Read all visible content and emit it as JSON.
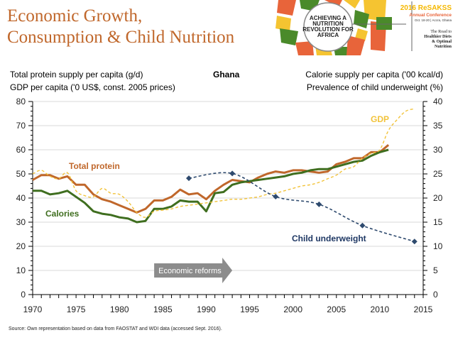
{
  "header": {
    "title_line1": "Economic Growth,",
    "title_line2": "Consumption & Child Nutrition"
  },
  "banner": {
    "logo_text": [
      "ACHIEVING A",
      "NUTRITION",
      "REVOLUTION FOR",
      "AFRICA"
    ],
    "conference_year": "2016 ReSAKSS",
    "conference_name": "Annual Conference",
    "conference_date": "Oct. 18-20 | Accra, Ghana",
    "tagline": [
      "The Road to",
      "Healthier Diets",
      "& Optimal",
      "Nutrition"
    ],
    "colors": {
      "orange": "#e8643a",
      "green": "#4a8a2a",
      "yellow": "#f5c431",
      "gray": "#d8d8d8"
    }
  },
  "axis_headers": {
    "left_line1": "Total protein supply per capita (g/d)",
    "left_line2": "GDP per capita ('0 US$, const. 2005 prices)",
    "country": "Ghana",
    "right_line1": "Calorie supply per capita ('00 kcal/d)",
    "right_line2": "Prevalence of child underweight (%)"
  },
  "annotation": {
    "label": "Economic reforms",
    "start_year": 1984,
    "end_year": 1993,
    "value": 10
  },
  "source": "Source: Own representation based on data from FAOSTAT and WDI data (accessed Sept. 2016).",
  "chart_data": {
    "type": "line",
    "title": "Ghana",
    "xlabel": "",
    "ylabel": "Total protein supply per capita (g/d); GDP per capita ('0 US$, const. 2005 prices)",
    "y2label": "Calorie supply per capita ('00 kcal/d); Prevalence of child underweight (%)",
    "xlim": [
      1970,
      2015
    ],
    "ylim": [
      0,
      80
    ],
    "y2lim": [
      0,
      40
    ],
    "xticks": [
      1970,
      1975,
      1980,
      1985,
      1990,
      1995,
      2000,
      2005,
      2010,
      2015
    ],
    "yticks": [
      0,
      10,
      20,
      30,
      40,
      50,
      60,
      70,
      80
    ],
    "y2ticks": [
      0,
      5,
      10,
      15,
      20,
      25,
      30,
      35,
      40
    ],
    "grid": true,
    "legend": "inline labels",
    "series": [
      {
        "name": "Total protein",
        "axis": "left",
        "color": "#c0672b",
        "style": "solid",
        "x": [
          1970,
          1971,
          1972,
          1973,
          1974,
          1975,
          1976,
          1977,
          1978,
          1979,
          1980,
          1981,
          1982,
          1983,
          1984,
          1985,
          1986,
          1987,
          1988,
          1989,
          1990,
          1991,
          1992,
          1993,
          1994,
          1995,
          1996,
          1997,
          1998,
          1999,
          2000,
          2001,
          2002,
          2003,
          2004,
          2005,
          2006,
          2007,
          2008,
          2009,
          2010,
          2011
        ],
        "values": [
          47.5,
          49.5,
          49.5,
          48,
          49,
          45.5,
          45.5,
          41.5,
          39.5,
          38.5,
          37,
          35.5,
          34,
          35.5,
          39,
          39,
          40.5,
          43.5,
          41.5,
          42,
          39.5,
          43,
          45.5,
          47.5,
          47,
          46.5,
          48.5,
          50,
          51,
          50.5,
          51.5,
          51.5,
          51,
          50.5,
          51,
          54,
          55,
          56.5,
          56.5,
          59,
          59,
          62
        ]
      },
      {
        "name": "Calories",
        "axis": "right",
        "color": "#3f6e1f",
        "style": "solid",
        "x": [
          1970,
          1971,
          1972,
          1973,
          1974,
          1975,
          1976,
          1977,
          1978,
          1979,
          1980,
          1981,
          1982,
          1983,
          1984,
          1985,
          1986,
          1987,
          1988,
          1989,
          1990,
          1991,
          1992,
          1993,
          1994,
          1995,
          1996,
          1997,
          1998,
          1999,
          2000,
          2001,
          2002,
          2003,
          2004,
          2005,
          2006,
          2007,
          2008,
          2009,
          2010,
          2011
        ],
        "values": [
          21.5,
          21.5,
          20.75,
          21,
          21.5,
          20.25,
          19,
          17.25,
          16.75,
          16.5,
          16,
          15.75,
          15,
          15.25,
          17.75,
          17.75,
          18.25,
          19.5,
          19.25,
          19.25,
          17.25,
          21,
          21.25,
          22.75,
          23.25,
          23.5,
          23.75,
          24,
          24.25,
          24.5,
          25,
          25.25,
          25.75,
          26,
          26,
          26.5,
          27,
          27.5,
          27.75,
          28.75,
          29.5,
          30
        ]
      },
      {
        "name": "GDP",
        "axis": "left",
        "color": "#f2c33a",
        "style": "dashed",
        "x": [
          1970,
          1971,
          1972,
          1973,
          1974,
          1975,
          1976,
          1977,
          1978,
          1979,
          1980,
          1981,
          1982,
          1983,
          1984,
          1985,
          1986,
          1987,
          1988,
          1989,
          1990,
          1991,
          1992,
          1993,
          1994,
          1995,
          1996,
          1997,
          1998,
          1999,
          2000,
          2001,
          2002,
          2003,
          2004,
          2005,
          2006,
          2007,
          2008,
          2009,
          2010,
          2011,
          2012,
          2013,
          2014
        ],
        "values": [
          50,
          51.5,
          49,
          48,
          50.5,
          43,
          41,
          40.5,
          44,
          42,
          41.5,
          38.5,
          34,
          32,
          34.5,
          35,
          35.5,
          36.5,
          37,
          37.5,
          38,
          38.5,
          39,
          39.5,
          39.5,
          40,
          40.5,
          41.5,
          42,
          43,
          44,
          45,
          45.5,
          46.5,
          48,
          49.5,
          52,
          53,
          56.5,
          58.5,
          60,
          68,
          72.5,
          76,
          77
        ]
      },
      {
        "name": "Child underweight",
        "axis": "right",
        "color": "#2e4a6e",
        "style": "dashed-markers",
        "x": [
          1988,
          1993,
          1998,
          2003,
          2008,
          2014
        ],
        "values": [
          24.1,
          25.1,
          20.3,
          18.7,
          14.3,
          11.0
        ]
      }
    ],
    "labels": [
      {
        "text": "Total protein",
        "series": "Total protein",
        "color": "#c0672b"
      },
      {
        "text": "Calories",
        "series": "Calories",
        "color": "#3f6e1f"
      },
      {
        "text": "GDP",
        "series": "GDP",
        "color": "#f2c33a"
      },
      {
        "text": "Child underweight",
        "series": "Child underweight",
        "color": "#1f3864"
      }
    ]
  }
}
